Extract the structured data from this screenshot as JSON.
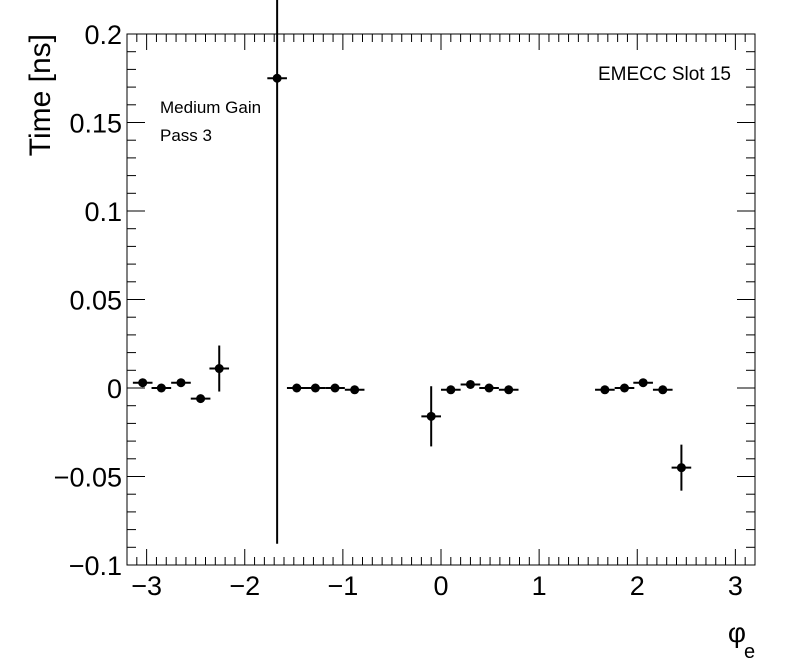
{
  "chart_data": {
    "type": "scatter",
    "title": "",
    "xlabel": "φ",
    "xlabel_sub": "e",
    "ylabel": "Time [ns]",
    "xlim": [
      -3.2,
      3.2
    ],
    "ylim": [
      -0.1,
      0.2
    ],
    "xticks": [
      {
        "v": -3,
        "label": "−3"
      },
      {
        "v": -2,
        "label": "−2"
      },
      {
        "v": -1,
        "label": "−1"
      },
      {
        "v": 0,
        "label": "0"
      },
      {
        "v": 1,
        "label": "1"
      },
      {
        "v": 2,
        "label": "2"
      },
      {
        "v": 3,
        "label": "3"
      }
    ],
    "yticks": [
      {
        "v": -0.1,
        "label": "−0.1"
      },
      {
        "v": -0.05,
        "label": "−0.05"
      },
      {
        "v": 0,
        "label": "0"
      },
      {
        "v": 0.05,
        "label": "0.05"
      },
      {
        "v": 0.1,
        "label": "0.1"
      },
      {
        "v": 0.15,
        "label": "0.15"
      },
      {
        "v": 0.2,
        "label": "0.2"
      }
    ],
    "grid": false,
    "points": [
      {
        "x": -3.04,
        "y": 0.003,
        "xerr": 0.1,
        "yerr": 0.002
      },
      {
        "x": -2.85,
        "y": 0.0,
        "xerr": 0.1,
        "yerr": 0.0015
      },
      {
        "x": -2.65,
        "y": 0.003,
        "xerr": 0.1,
        "yerr": 0.0015
      },
      {
        "x": -2.45,
        "y": -0.006,
        "xerr": 0.1,
        "yerr": 0.0015
      },
      {
        "x": -2.26,
        "y": 0.011,
        "xerr": 0.1,
        "yerr": 0.013
      },
      {
        "x": -1.67,
        "y": 0.175,
        "xerr": 0.1,
        "yerr": 0.263
      },
      {
        "x": -1.47,
        "y": 0.0,
        "xerr": 0.1,
        "yerr": 0.0015
      },
      {
        "x": -1.28,
        "y": 0.0,
        "xerr": 0.1,
        "yerr": 0.0015
      },
      {
        "x": -1.08,
        "y": 0.0,
        "xerr": 0.1,
        "yerr": 0.0015
      },
      {
        "x": -0.88,
        "y": -0.001,
        "xerr": 0.1,
        "yerr": 0.002
      },
      {
        "x": -0.1,
        "y": -0.016,
        "xerr": 0.1,
        "yerr": 0.017
      },
      {
        "x": 0.1,
        "y": -0.001,
        "xerr": 0.1,
        "yerr": 0.0015
      },
      {
        "x": 0.3,
        "y": 0.002,
        "xerr": 0.1,
        "yerr": 0.0015
      },
      {
        "x": 0.49,
        "y": 0.0,
        "xerr": 0.1,
        "yerr": 0.0015
      },
      {
        "x": 0.69,
        "y": -0.001,
        "xerr": 0.1,
        "yerr": 0.0015
      },
      {
        "x": 1.67,
        "y": -0.001,
        "xerr": 0.1,
        "yerr": 0.0015
      },
      {
        "x": 1.87,
        "y": 0.0,
        "xerr": 0.1,
        "yerr": 0.0015
      },
      {
        "x": 2.06,
        "y": 0.003,
        "xerr": 0.1,
        "yerr": 0.002
      },
      {
        "x": 2.26,
        "y": -0.001,
        "xerr": 0.1,
        "yerr": 0.0015
      },
      {
        "x": 2.45,
        "y": -0.045,
        "xerr": 0.1,
        "yerr": 0.013
      }
    ],
    "annotations": {
      "slot_label": "EMECC Slot 15",
      "gain_label": "Medium Gain",
      "pass_label": "Pass 3"
    }
  }
}
